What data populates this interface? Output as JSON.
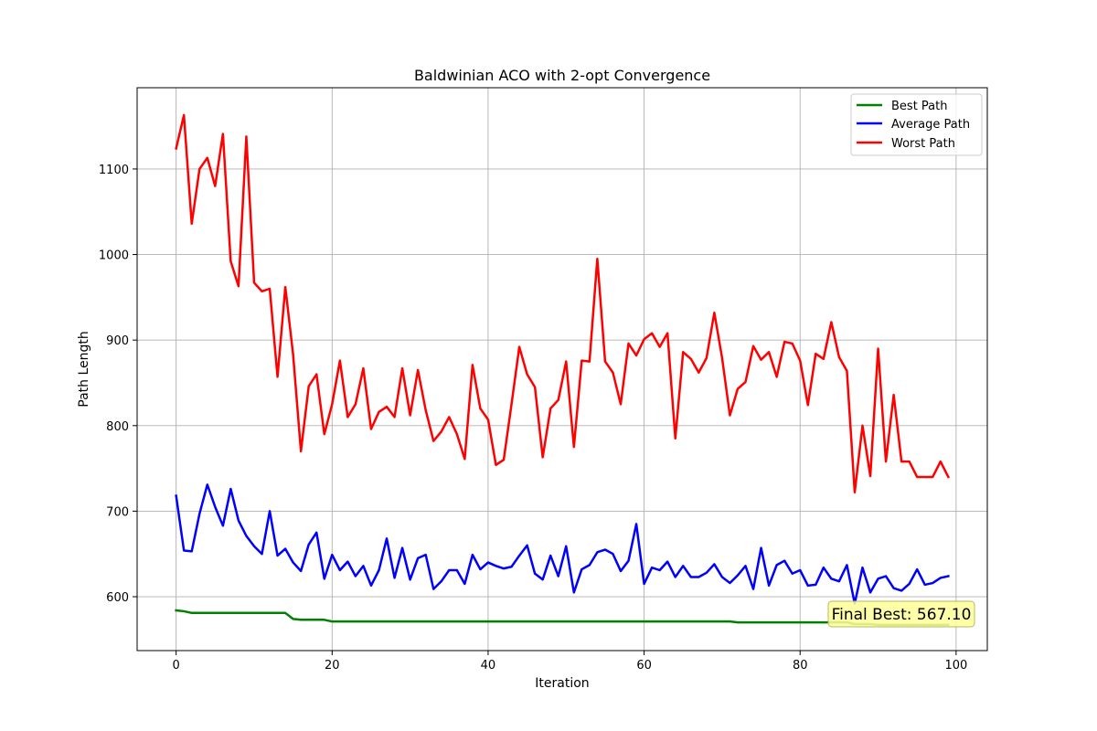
{
  "chart_data": {
    "type": "line",
    "title": "Baldwinian ACO with 2-opt Convergence",
    "xlabel": "Iteration",
    "ylabel": "Path Length",
    "xlim": [
      -5,
      104
    ],
    "ylim": [
      537,
      1195
    ],
    "xticks": [
      0,
      20,
      40,
      60,
      80,
      100
    ],
    "yticks": [
      600,
      700,
      800,
      900,
      1000,
      1100
    ],
    "grid": true,
    "legend_position": "top-right",
    "annotation": {
      "text": "Final Best: 567.10",
      "x": 99,
      "y": 567.1
    },
    "series": [
      {
        "name": "Best Path",
        "color": "#008000",
        "values": [
          584,
          583,
          581,
          581,
          581,
          581,
          581,
          581,
          581,
          581,
          581,
          581,
          581,
          581,
          581,
          574,
          573,
          573,
          573,
          573,
          571,
          571,
          571,
          571,
          571,
          571,
          571,
          571,
          571,
          571,
          571,
          571,
          571,
          571,
          571,
          571,
          571,
          571,
          571,
          571,
          571,
          571,
          571,
          571,
          571,
          571,
          571,
          571,
          571,
          571,
          571,
          571,
          571,
          571,
          571,
          571,
          571,
          571,
          571,
          571,
          571,
          571,
          571,
          571,
          571,
          571,
          571,
          571,
          571,
          571,
          571,
          571,
          570,
          570,
          570,
          570,
          570,
          570,
          570,
          570,
          570,
          570,
          570,
          570,
          570,
          570,
          570,
          568,
          568,
          568,
          567.1,
          567.1,
          567.1,
          567.1,
          567.1,
          567.1,
          567.1,
          567.1,
          567.1,
          567.1
        ]
      },
      {
        "name": "Average Path",
        "color": "#0000ff",
        "values": [
          718,
          654,
          653,
          697,
          731,
          705,
          683,
          726,
          689,
          671,
          659,
          650,
          700,
          648,
          656,
          640,
          630,
          661,
          675,
          621,
          649,
          631,
          641,
          624,
          636,
          613,
          631,
          668,
          622,
          657,
          620,
          645,
          649,
          609,
          618,
          631,
          631,
          615,
          649,
          632,
          640,
          636,
          633,
          635,
          648,
          660,
          627,
          620,
          648,
          624,
          659,
          605,
          632,
          637,
          652,
          655,
          650,
          630,
          642,
          685,
          615,
          634,
          631,
          641,
          623,
          636,
          623,
          623,
          628,
          638,
          623,
          616,
          625,
          636,
          609,
          657,
          613,
          637,
          642,
          627,
          631,
          613,
          614,
          634,
          621,
          618,
          637,
          592,
          634,
          605,
          621,
          624,
          610,
          607,
          615,
          632,
          614,
          616,
          622,
          624
        ]
      },
      {
        "name": "Worst Path",
        "color": "#ff0000",
        "values": [
          1124,
          1163,
          1036,
          1100,
          1113,
          1080,
          1141,
          992,
          963,
          1138,
          967,
          957,
          960,
          857,
          962,
          883,
          770,
          846,
          860,
          790,
          825,
          876,
          810,
          825,
          867,
          796,
          816,
          822,
          810,
          867,
          812,
          865,
          818,
          782,
          793,
          810,
          790,
          761,
          871,
          820,
          807,
          754,
          760,
          825,
          892,
          860,
          845,
          763,
          820,
          830,
          875,
          775,
          876,
          875,
          995,
          875,
          862,
          825,
          896,
          882,
          901,
          908,
          892,
          908,
          785,
          886,
          878,
          862,
          879,
          932,
          879,
          812,
          843,
          851,
          893,
          877,
          886,
          857,
          898,
          896,
          876,
          824,
          884,
          878,
          921,
          880,
          864,
          722,
          800,
          741,
          890,
          758,
          836,
          758,
          758,
          740,
          740,
          740,
          758,
          740
        ]
      }
    ]
  }
}
